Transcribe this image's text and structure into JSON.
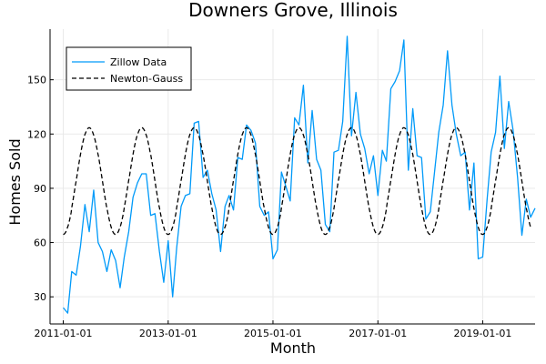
{
  "chart_data": {
    "type": "line",
    "title": "Downers Grove, Illinois",
    "xlabel": "Month",
    "ylabel": "Homes Sold",
    "x_ticks": [
      "2011-01-01",
      "2013-01-01",
      "2015-01-01",
      "2017-01-01",
      "2019-01-01"
    ],
    "y_ticks": [
      30,
      60,
      90,
      120,
      150
    ],
    "xlim": [
      "2010-10-01",
      "2020-01-01"
    ],
    "ylim": [
      15,
      178
    ],
    "grid": true,
    "legend_position": "top-left",
    "series": [
      {
        "name": "Zillow Data",
        "color": "#009af9",
        "style": "solid",
        "points": [
          [
            "2011-01-01",
            24
          ],
          [
            "2011-02-01",
            21
          ],
          [
            "2011-03-01",
            44
          ],
          [
            "2011-04-01",
            42
          ],
          [
            "2011-05-01",
            58
          ],
          [
            "2011-06-01",
            81
          ],
          [
            "2011-07-01",
            66
          ],
          [
            "2011-08-01",
            89
          ],
          [
            "2011-09-01",
            60
          ],
          [
            "2011-10-01",
            55
          ],
          [
            "2011-11-01",
            44
          ],
          [
            "2011-12-01",
            56
          ],
          [
            "2012-01-01",
            50
          ],
          [
            "2012-02-01",
            35
          ],
          [
            "2012-03-01",
            52
          ],
          [
            "2012-04-01",
            66
          ],
          [
            "2012-05-01",
            85
          ],
          [
            "2012-06-01",
            93
          ],
          [
            "2012-07-01",
            98
          ],
          [
            "2012-08-01",
            98
          ],
          [
            "2012-09-01",
            75
          ],
          [
            "2012-10-01",
            76
          ],
          [
            "2012-11-01",
            55
          ],
          [
            "2012-12-01",
            38
          ],
          [
            "2013-01-01",
            61
          ],
          [
            "2013-02-01",
            30
          ],
          [
            "2013-03-01",
            57
          ],
          [
            "2013-04-01",
            80
          ],
          [
            "2013-05-01",
            86
          ],
          [
            "2013-06-01",
            87
          ],
          [
            "2013-07-01",
            126
          ],
          [
            "2013-08-01",
            127
          ],
          [
            "2013-09-01",
            96
          ],
          [
            "2013-10-01",
            100
          ],
          [
            "2013-11-01",
            87
          ],
          [
            "2013-12-01",
            78
          ],
          [
            "2014-01-01",
            55
          ],
          [
            "2014-02-01",
            80
          ],
          [
            "2014-03-01",
            86
          ],
          [
            "2014-04-01",
            78
          ],
          [
            "2014-05-01",
            107
          ],
          [
            "2014-06-01",
            106
          ],
          [
            "2014-07-01",
            125
          ],
          [
            "2014-08-01",
            122
          ],
          [
            "2014-09-01",
            115
          ],
          [
            "2014-10-01",
            80
          ],
          [
            "2014-11-01",
            75
          ],
          [
            "2014-12-01",
            77
          ],
          [
            "2015-01-01",
            51
          ],
          [
            "2015-02-01",
            56
          ],
          [
            "2015-03-01",
            99
          ],
          [
            "2015-04-01",
            91
          ],
          [
            "2015-05-01",
            83
          ],
          [
            "2015-06-01",
            129
          ],
          [
            "2015-07-01",
            125
          ],
          [
            "2015-08-01",
            147
          ],
          [
            "2015-09-01",
            104
          ],
          [
            "2015-10-01",
            133
          ],
          [
            "2015-11-01",
            106
          ],
          [
            "2015-12-01",
            100
          ],
          [
            "2016-01-01",
            70
          ],
          [
            "2016-02-01",
            66
          ],
          [
            "2016-03-01",
            110
          ],
          [
            "2016-04-01",
            111
          ],
          [
            "2016-05-01",
            127
          ],
          [
            "2016-06-01",
            174
          ],
          [
            "2016-07-01",
            119
          ],
          [
            "2016-08-01",
            143
          ],
          [
            "2016-09-01",
            120
          ],
          [
            "2016-10-01",
            112
          ],
          [
            "2016-11-01",
            98
          ],
          [
            "2016-12-01",
            108
          ],
          [
            "2017-01-01",
            86
          ],
          [
            "2017-02-01",
            111
          ],
          [
            "2017-03-01",
            105
          ],
          [
            "2017-04-01",
            145
          ],
          [
            "2017-05-01",
            149
          ],
          [
            "2017-06-01",
            155
          ],
          [
            "2017-07-01",
            172
          ],
          [
            "2017-08-01",
            100
          ],
          [
            "2017-09-01",
            134
          ],
          [
            "2017-10-01",
            108
          ],
          [
            "2017-11-01",
            107
          ],
          [
            "2017-12-01",
            73
          ],
          [
            "2018-01-01",
            77
          ],
          [
            "2018-02-01",
            100
          ],
          [
            "2018-03-01",
            121
          ],
          [
            "2018-04-01",
            136
          ],
          [
            "2018-05-01",
            166
          ],
          [
            "2018-06-01",
            136
          ],
          [
            "2018-07-01",
            120
          ],
          [
            "2018-08-01",
            108
          ],
          [
            "2018-09-01",
            110
          ],
          [
            "2018-10-01",
            78
          ],
          [
            "2018-11-01",
            104
          ],
          [
            "2018-12-01",
            51
          ],
          [
            "2019-01-01",
            52
          ],
          [
            "2019-02-01",
            84
          ],
          [
            "2019-03-01",
            110
          ],
          [
            "2019-04-01",
            121
          ],
          [
            "2019-05-01",
            152
          ],
          [
            "2019-06-01",
            112
          ],
          [
            "2019-07-01",
            138
          ],
          [
            "2019-08-01",
            122
          ],
          [
            "2019-09-01",
            96
          ],
          [
            "2019-10-01",
            64
          ],
          [
            "2019-11-01",
            84
          ],
          [
            "2019-12-01",
            74
          ],
          [
            "2020-01-01",
            79
          ]
        ]
      },
      {
        "name": "Newton-Gauss",
        "color": "#000000",
        "style": "dashed",
        "fit": {
          "mean": 94,
          "amplitude": 29.5,
          "peak_month": 7,
          "start": "2011-01-01",
          "end": "2019-12-01"
        }
      }
    ]
  }
}
